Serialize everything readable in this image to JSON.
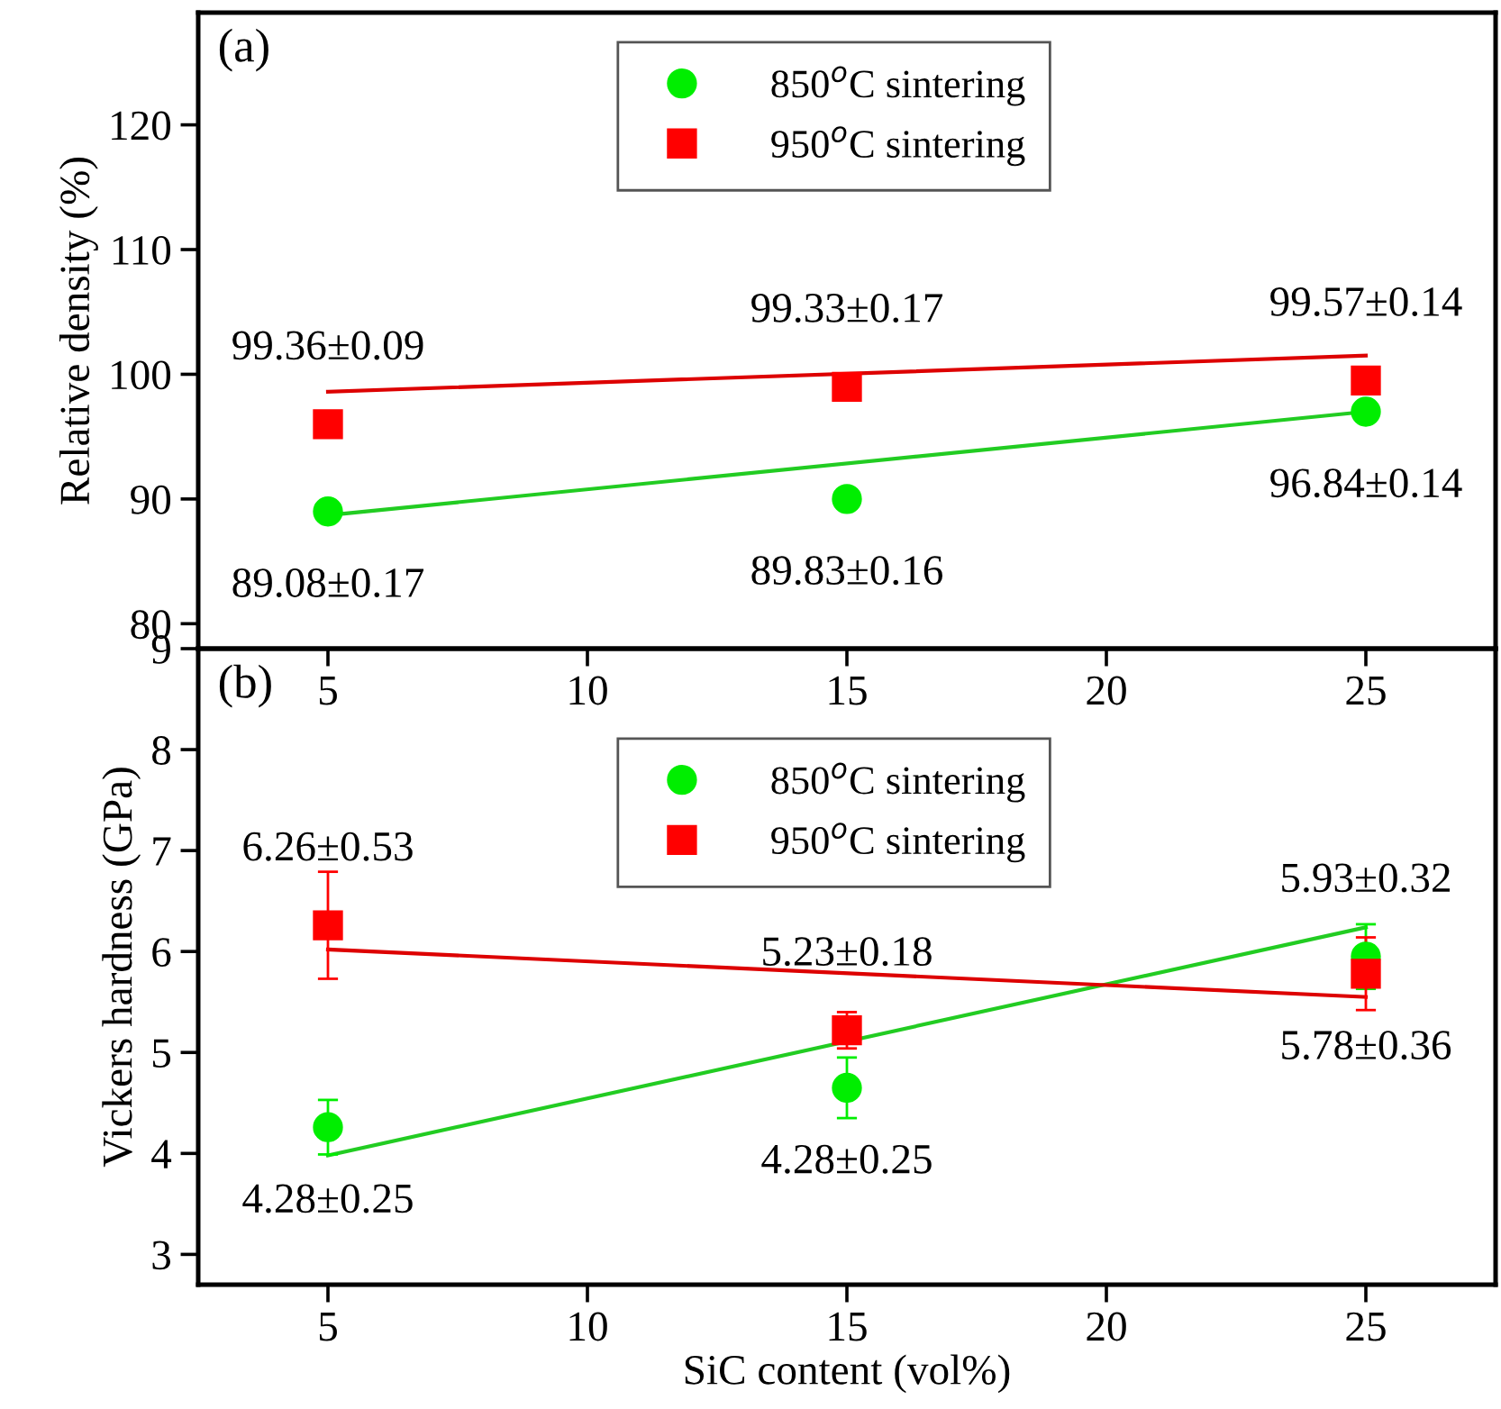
{
  "chart_data": [
    {
      "type": "scatter",
      "ylabel": "Relative density (%)",
      "xlim": [
        2.5,
        27.5
      ],
      "xticks": [
        5,
        10,
        15,
        20,
        25
      ],
      "ylim": [
        78,
        129
      ],
      "yticks": [
        80,
        90,
        100,
        110,
        120
      ],
      "legend": "top",
      "series": [
        {
          "name": "850$^{o}$C sintering",
          "type": "scatter",
          "marker": "circle",
          "color": "#00ee00",
          "x": [
            5,
            15,
            25
          ],
          "values": [
            89,
            90,
            97
          ]
        },
        {
          "name": "950$^{o}$C sintering",
          "type": "scatter",
          "marker": "square",
          "color": "#ff0000",
          "x": [
            5,
            15,
            25
          ],
          "values": [
            96,
            99,
            99.5
          ]
        },
        {
          "type": "line",
          "color": "#22cc22",
          "x": [
            5,
            25
          ],
          "values": [
            88.7,
            97
          ]
        },
        {
          "type": "line",
          "color": "#dd0000",
          "x": [
            5,
            25
          ],
          "values": [
            98.6,
            101.5
          ]
        }
      ],
      "annotations": [
        "(a)",
        {
          "text": "99.36±0.09",
          "x": 5,
          "y": 96
        },
        {
          "text": "89.08±0.17",
          "x": 5,
          "y": 89
        },
        {
          "text": "99.33±0.17",
          "x": 15,
          "y": 99
        },
        {
          "text": "89.83±0.16",
          "x": 15,
          "y": 90
        },
        {
          "text": "99.57±0.14",
          "x": 25,
          "y": 99.5
        },
        {
          "text": "96.84±0.14",
          "x": 25,
          "y": 97
        }
      ]
    },
    {
      "type": "scatter",
      "xlabel": "SiC content (vol%)",
      "ylabel": "Vickers hardness (GPa)",
      "xlim": [
        2.5,
        27.5
      ],
      "xticks": [
        5,
        10,
        15,
        20,
        25
      ],
      "ylim": [
        2.7,
        9
      ],
      "yticks": [
        3,
        4,
        5,
        6,
        7,
        8,
        9
      ],
      "legend": "top",
      "series": [
        {
          "name": "850$^{o}$C sintering",
          "type": "scatter",
          "marker": "circle",
          "color": "#00ee00",
          "x": [
            5,
            15,
            25
          ],
          "values": [
            4.26,
            4.65,
            5.95
          ],
          "errors": [
            0.27,
            0.3,
            0.32
          ]
        },
        {
          "name": "950$^{o}$C sintering",
          "type": "scatter",
          "marker": "square",
          "color": "#ff0000",
          "x": [
            5,
            15,
            25
          ],
          "values": [
            6.26,
            5.22,
            5.78
          ],
          "errors": [
            0.53,
            0.18,
            0.36
          ]
        },
        {
          "type": "line",
          "color": "#22cc22",
          "x": [
            5,
            25
          ],
          "values": [
            3.98,
            6.24
          ]
        },
        {
          "type": "line",
          "color": "#dd0000",
          "x": [
            5,
            25
          ],
          "values": [
            6.02,
            5.55
          ]
        }
      ],
      "annotations": [
        "(b)",
        {
          "text": "6.26±0.53",
          "x": 5,
          "y": 6.26
        },
        {
          "text": "4.28±0.25",
          "x": 5,
          "y": 4.26
        },
        {
          "text": "5.23±0.18",
          "x": 15,
          "y": 5.22
        },
        {
          "text": "4.28±0.25",
          "x": 15,
          "y": 4.65
        },
        {
          "text": "5.93±0.32",
          "x": 25,
          "y": 5.95
        },
        {
          "text": "5.78±0.36",
          "x": 25,
          "y": 5.78
        }
      ]
    }
  ]
}
